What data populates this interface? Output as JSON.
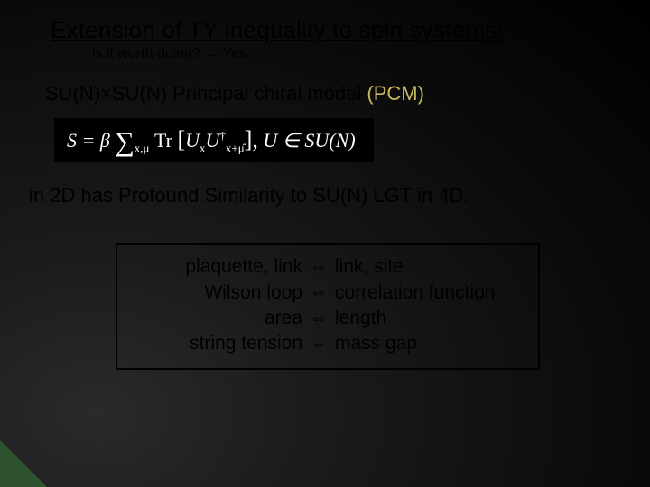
{
  "title": "Extension of TY inequality to spin systems:",
  "subtitle": "is it worth doing? → Yes.",
  "model_line_prefix": "SU(N)×SU(N)  Principal chiral model ",
  "model_line_pcm": "(PCM)",
  "formula": {
    "lhs": "S = β",
    "sum_symbol": "∑",
    "sum_sub": "x,μ",
    "tr": " Tr ",
    "bracket_open": "[",
    "u1": "U",
    "u1_sub": "x",
    "u2": "U",
    "u2_sup": "†",
    "u2_sub": "x+μ̂",
    "bracket_close": "],",
    "cond": "    U ∈ SU(N)"
  },
  "similarity": "in 2D has Profound Similarity to SU(N) LGT in 4D:",
  "analogies": [
    {
      "left": "plaquette, link",
      "right": "link, site"
    },
    {
      "left": "Wilson loop",
      "right": "correlation function"
    },
    {
      "left": "area",
      "right": "length"
    },
    {
      "left": "string tension",
      "right": "mass gap"
    }
  ],
  "arrow": "⇔"
}
